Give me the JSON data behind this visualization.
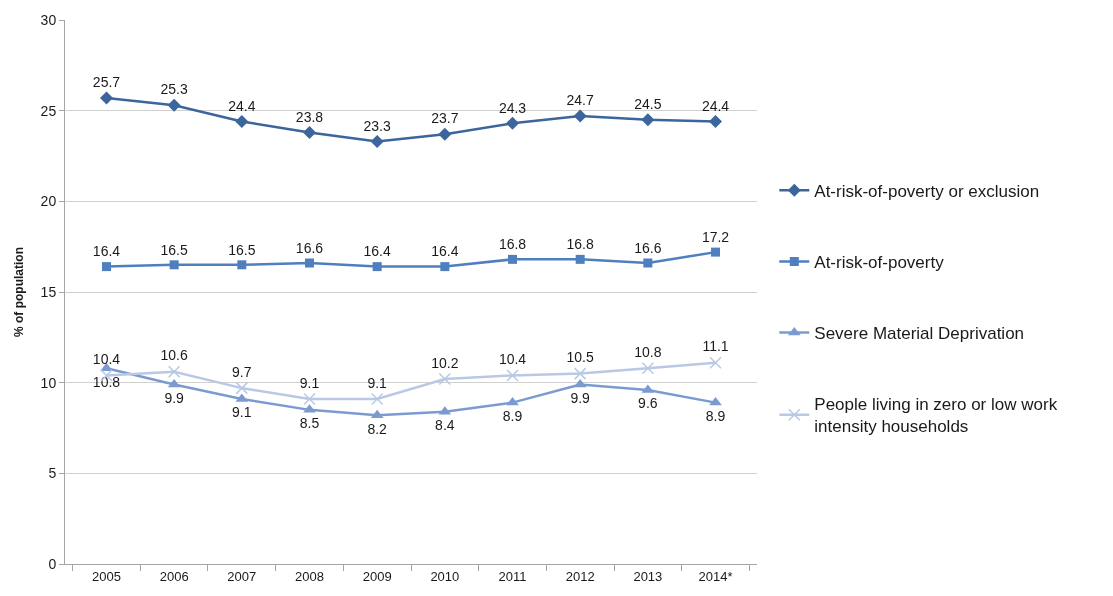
{
  "chart_data": {
    "type": "line",
    "ylabel": "% of population",
    "categories": [
      "2005",
      "2006",
      "2007",
      "2008",
      "2009",
      "2010",
      "2011",
      "2012",
      "2013",
      "2014*"
    ],
    "ylim": [
      0,
      30
    ],
    "yticks": [
      0,
      5,
      10,
      15,
      20,
      25,
      30
    ],
    "grid": "y",
    "legend": "right",
    "data_labels": true,
    "line_style": "solid",
    "series": [
      {
        "name": "At-risk-of-poverty or exclusion",
        "color": "#3b659c",
        "marker": "diamond",
        "values": [
          25.7,
          25.3,
          24.4,
          23.8,
          23.3,
          23.7,
          24.3,
          24.7,
          24.5,
          24.4
        ]
      },
      {
        "name": "At-risk-of-poverty",
        "color": "#4f7fbf",
        "marker": "square",
        "values": [
          16.4,
          16.5,
          16.5,
          16.6,
          16.4,
          16.4,
          16.8,
          16.8,
          16.6,
          17.2
        ]
      },
      {
        "name": "Severe Material Deprivation",
        "color": "#7b9bd0",
        "marker": "triangle",
        "values": [
          10.8,
          9.9,
          9.1,
          8.5,
          8.2,
          8.4,
          8.9,
          9.9,
          9.6,
          8.9
        ]
      },
      {
        "name": "People living in zero or low work intensity households",
        "color": "#b9c9e4",
        "marker": "cross",
        "values": [
          10.4,
          10.6,
          9.7,
          9.1,
          9.1,
          10.2,
          10.4,
          10.5,
          10.8,
          11.1
        ]
      }
    ]
  }
}
